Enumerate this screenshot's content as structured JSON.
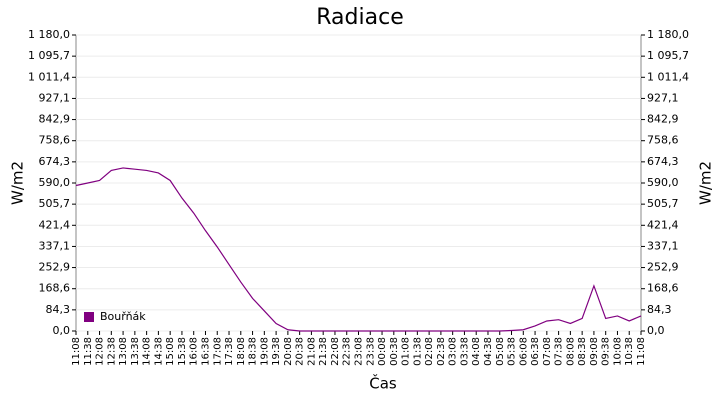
{
  "chart_data": {
    "type": "line",
    "title": "Radiace",
    "x_label": "Čas",
    "y_label": "W/m2",
    "y2_label": "W/m2",
    "x": [
      "11:08",
      "11:38",
      "12:08",
      "12:38",
      "13:08",
      "13:38",
      "14:08",
      "14:38",
      "15:08",
      "15:38",
      "16:08",
      "16:38",
      "17:08",
      "17:38",
      "18:08",
      "18:38",
      "19:08",
      "19:38",
      "20:08",
      "20:38",
      "21:08",
      "21:38",
      "22:08",
      "22:38",
      "23:08",
      "23:38",
      "00:08",
      "00:38",
      "01:08",
      "01:38",
      "02:08",
      "02:38",
      "03:08",
      "03:38",
      "04:08",
      "04:38",
      "05:08",
      "05:38",
      "06:08",
      "06:38",
      "07:08",
      "07:38",
      "08:08",
      "08:38",
      "09:08",
      "09:38",
      "10:08",
      "10:38",
      "11:08"
    ],
    "series": [
      {
        "name": "Bouřňák",
        "color": "#800080",
        "values": [
          580,
          590,
          600,
          640,
          650,
          645,
          640,
          630,
          600,
          530,
          470,
          400,
          335,
          265,
          195,
          130,
          80,
          30,
          5,
          0,
          0,
          0,
          0,
          0,
          0,
          0,
          0,
          0,
          0,
          0,
          0,
          0,
          0,
          0,
          0,
          0,
          0,
          2,
          5,
          20,
          40,
          45,
          30,
          50,
          180,
          50,
          60,
          40,
          60
        ]
      }
    ],
    "ylim": [
      0,
      1180
    ],
    "yticks": [
      {
        "value": 0,
        "label": "0,0"
      },
      {
        "value": 84.3,
        "label": "84,3"
      },
      {
        "value": 168.6,
        "label": "168,6"
      },
      {
        "value": 252.9,
        "label": "252,9"
      },
      {
        "value": 337.1,
        "label": "337,1"
      },
      {
        "value": 421.4,
        "label": "421,4"
      },
      {
        "value": 505.7,
        "label": "505,7"
      },
      {
        "value": 590,
        "label": "590,0"
      },
      {
        "value": 674.3,
        "label": "674,3"
      },
      {
        "value": 758.6,
        "label": "758,6"
      },
      {
        "value": 842.9,
        "label": "842,9"
      },
      {
        "value": 927.1,
        "label": "927,1"
      },
      {
        "value": 1011.4,
        "label": "1 011,4"
      },
      {
        "value": 1095.7,
        "label": "1 095,7"
      },
      {
        "value": 1180,
        "label": "1 180,0"
      }
    ],
    "grid": true,
    "legend": "lower left"
  }
}
